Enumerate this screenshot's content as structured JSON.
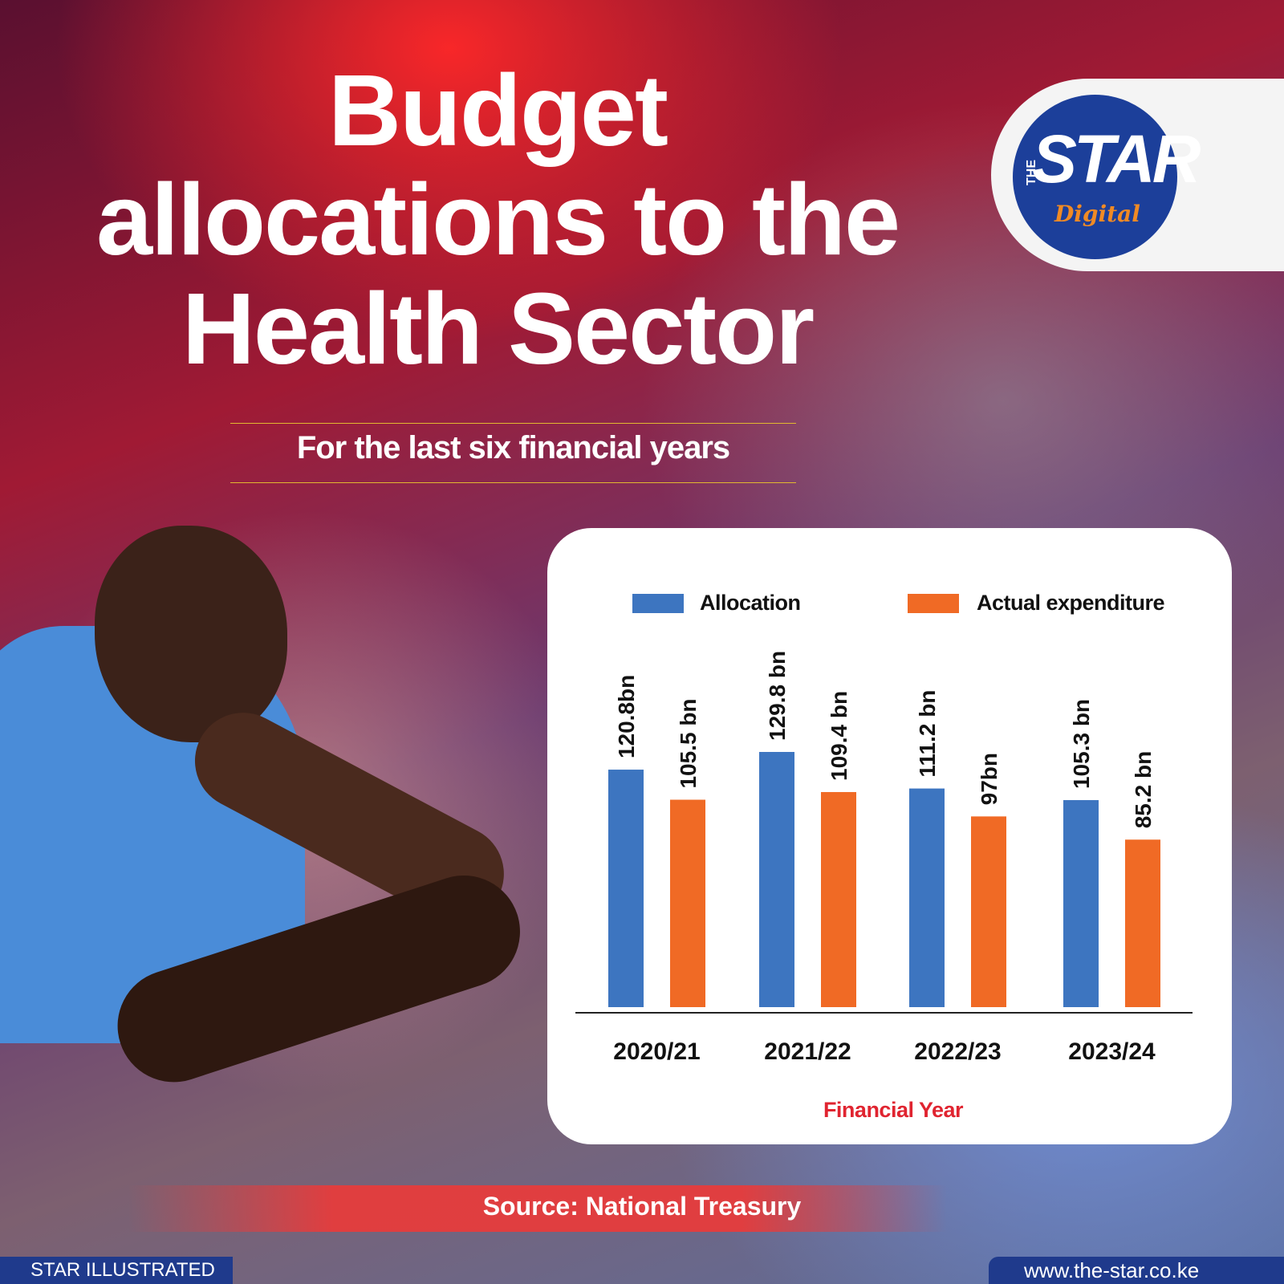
{
  "header": {
    "title_lines": [
      "Budget",
      "allocations to the",
      "Health Sector"
    ],
    "subtitle": "For the last six financial years"
  },
  "logo": {
    "the": "THE",
    "star": "STAR",
    "digital": "Digital"
  },
  "colors": {
    "allocation": "#3d75c0",
    "expenditure": "#f06a25",
    "xlabel": "#e02430",
    "logo_blue": "#1c3f9a"
  },
  "chart_data": {
    "type": "bar",
    "categories": [
      "2020/21",
      "2021/22",
      "2022/23",
      "2023/24"
    ],
    "series": [
      {
        "name": "Allocation",
        "values": [
          120.8,
          129.8,
          111.2,
          105.3
        ],
        "labels": [
          "120.8bn",
          "129.8 bn",
          "111.2 bn",
          "105.3 bn"
        ]
      },
      {
        "name": "Actual expenditure",
        "values": [
          105.5,
          109.4,
          97,
          85.2
        ],
        "labels": [
          "105.5 bn",
          "109.4 bn",
          "97bn",
          "85.2 bn"
        ]
      }
    ],
    "xlabel": "Financial Year",
    "ylabel": "",
    "legend_position": "top",
    "grid": false
  },
  "footer": {
    "source": "Source: National Treasury",
    "credit_left": "STAR ILLUSTRATED",
    "credit_right": "www.the-star.co.ke"
  }
}
